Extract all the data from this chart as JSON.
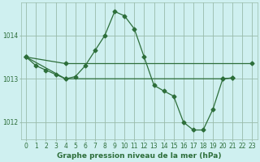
{
  "xlabel": "Graphe pression niveau de la mer (hPa)",
  "bg_color": "#cff0f0",
  "grid_color": "#99bbaa",
  "line_color": "#2d6e3a",
  "x_ticks": [
    0,
    1,
    2,
    3,
    4,
    5,
    6,
    7,
    8,
    9,
    10,
    11,
    12,
    13,
    14,
    15,
    16,
    17,
    18,
    19,
    20,
    21,
    22,
    23
  ],
  "ylim": [
    1011.6,
    1014.75
  ],
  "yticks": [
    1012,
    1013,
    1014
  ],
  "series": [
    [
      1013.5,
      1013.3,
      1013.2,
      1013.1,
      1013.0,
      1013.05,
      1013.3,
      1013.65,
      1014.0,
      1014.55,
      1014.45,
      1014.15,
      1013.5,
      1012.85,
      1012.72,
      1012.6,
      1012.0,
      1011.82,
      1011.82,
      1012.3,
      1013.0,
      1013.02,
      null,
      null
    ],
    [
      1013.5,
      null,
      null,
      null,
      1013.35,
      null,
      null,
      null,
      null,
      null,
      null,
      null,
      null,
      null,
      null,
      null,
      null,
      null,
      null,
      null,
      null,
      null,
      null,
      1013.35
    ],
    [
      1013.5,
      null,
      null,
      null,
      1013.0,
      null,
      null,
      null,
      null,
      null,
      null,
      null,
      null,
      null,
      null,
      null,
      null,
      null,
      null,
      null,
      1013.0,
      1013.02,
      null,
      null
    ]
  ],
  "marker": "D",
  "markersize": 2.5,
  "linewidth": 0.9,
  "tick_fontsize": 5.5,
  "label_fontsize": 6.5
}
